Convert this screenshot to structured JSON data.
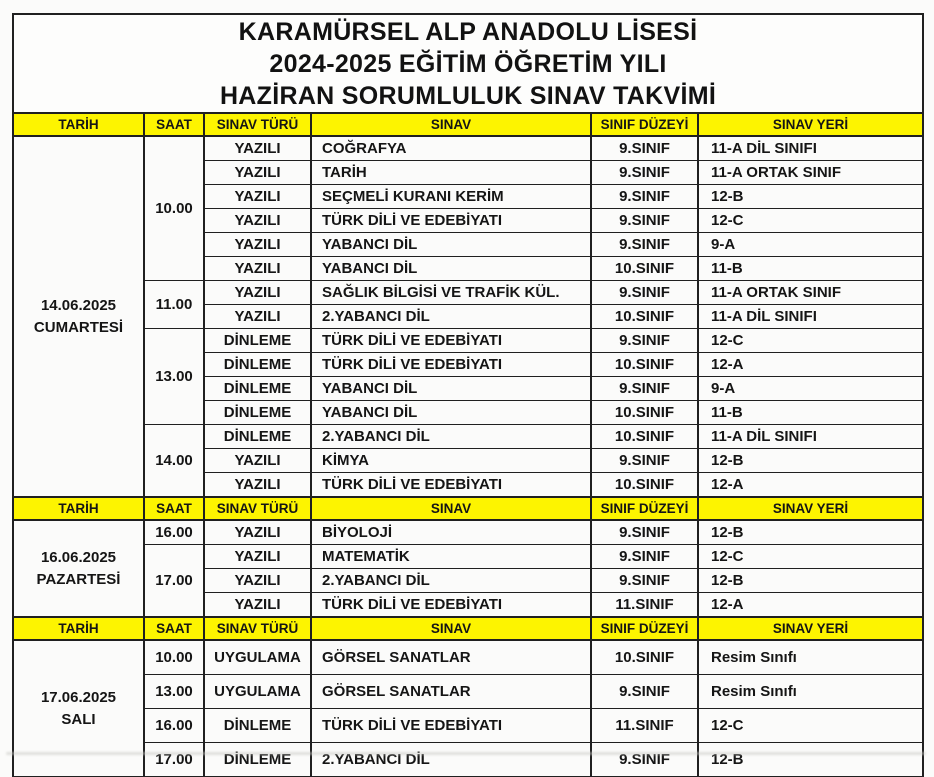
{
  "title": {
    "line1": "KARAMÜRSEL ALP ANADOLU LİSESİ",
    "line2": "2024-2025 EĞİTİM ÖĞRETİM YILI",
    "line3": "HAZİRAN SORUMLULUK SINAV TAKVİMİ"
  },
  "colors": {
    "header_bg": "#fdf400",
    "border": "#202020",
    "text": "#151515",
    "page_bg": "#fbfbfa"
  },
  "table": {
    "headers": [
      "TARİH",
      "SAAT",
      "SINAV TÜRÜ",
      "SINAV",
      "SINIF DÜZEYİ",
      "SINAV YERİ"
    ],
    "sections": [
      {
        "date_line1": "14.06.2025",
        "date_line2": "CUMARTESİ",
        "time_groups": [
          {
            "time": "10.00",
            "rows": [
              {
                "type": "YAZILI",
                "exam": "COĞRAFYA",
                "grade": "9.SINIF",
                "place": "11-A DİL SINIFI"
              },
              {
                "type": "YAZILI",
                "exam": "TARİH",
                "grade": "9.SINIF",
                "place": "11-A ORTAK SINIF"
              },
              {
                "type": "YAZILI",
                "exam": "SEÇMELİ KURANI KERİM",
                "grade": "9.SINIF",
                "place": "12-B"
              },
              {
                "type": "YAZILI",
                "exam": "TÜRK DİLİ VE EDEBİYATI",
                "grade": "9.SINIF",
                "place": "12-C"
              },
              {
                "type": "YAZILI",
                "exam": "YABANCI DİL",
                "grade": "9.SINIF",
                "place": "9-A"
              },
              {
                "type": "YAZILI",
                "exam": "YABANCI DİL",
                "grade": "10.SINIF",
                "place": "11-B"
              }
            ]
          },
          {
            "time": "11.00",
            "rows": [
              {
                "type": "YAZILI",
                "exam": "SAĞLIK BİLGİSİ VE TRAFİK KÜL.",
                "grade": "9.SINIF",
                "place": "11-A ORTAK SINIF"
              },
              {
                "type": "YAZILI",
                "exam": "2.YABANCI DİL",
                "grade": "10.SINIF",
                "place": "11-A DİL SINIFI"
              }
            ]
          },
          {
            "time": "13.00",
            "rows": [
              {
                "type": "DİNLEME",
                "exam": "TÜRK DİLİ VE EDEBİYATI",
                "grade": "9.SINIF",
                "place": "12-C"
              },
              {
                "type": "DİNLEME",
                "exam": "TÜRK DİLİ VE EDEBİYATI",
                "grade": "10.SINIF",
                "place": "12-A"
              },
              {
                "type": "DİNLEME",
                "exam": "YABANCI DİL",
                "grade": "9.SINIF",
                "place": "9-A"
              },
              {
                "type": "DİNLEME",
                "exam": "YABANCI DİL",
                "grade": "10.SINIF",
                "place": "11-B"
              }
            ]
          },
          {
            "time": "14.00",
            "rows": [
              {
                "type": "DİNLEME",
                "exam": "2.YABANCI DİL",
                "grade": "10.SINIF",
                "place": "11-A DİL SINIFI"
              },
              {
                "type": "YAZILI",
                "exam": "KİMYA",
                "grade": "9.SINIF",
                "place": "12-B"
              },
              {
                "type": "YAZILI",
                "exam": "TÜRK DİLİ VE EDEBİYATI",
                "grade": "10.SINIF",
                "place": "12-A"
              }
            ]
          }
        ]
      },
      {
        "date_line1": "16.06.2025",
        "date_line2": "PAZARTESİ",
        "time_groups": [
          {
            "time": "16.00",
            "rows": [
              {
                "type": "YAZILI",
                "exam": "BİYOLOJİ",
                "grade": "9.SINIF",
                "place": "12-B"
              }
            ]
          },
          {
            "time": "17.00",
            "rows": [
              {
                "type": "YAZILI",
                "exam": "MATEMATİK",
                "grade": "9.SINIF",
                "place": "12-C"
              },
              {
                "type": "YAZILI",
                "exam": "2.YABANCI DİL",
                "grade": "9.SINIF",
                "place": "12-B"
              },
              {
                "type": "YAZILI",
                "exam": "TÜRK DİLİ VE EDEBİYATI",
                "grade": "11.SINIF",
                "place": "12-A"
              }
            ]
          }
        ]
      },
      {
        "date_line1": "17.06.2025",
        "date_line2": "SALI",
        "time_groups": [
          {
            "time": "10.00",
            "rows": [
              {
                "type": "UYGULAMA",
                "exam": "GÖRSEL SANATLAR",
                "grade": "10.SINIF",
                "place": "Resim Sınıfı"
              }
            ]
          },
          {
            "time": "13.00",
            "rows": [
              {
                "type": "UYGULAMA",
                "exam": "GÖRSEL SANATLAR",
                "grade": "9.SINIF",
                "place": "Resim Sınıfı"
              }
            ]
          },
          {
            "time": "16.00",
            "rows": [
              {
                "type": "DİNLEME",
                "exam": "TÜRK DİLİ VE EDEBİYATI",
                "grade": "11.SINIF",
                "place": "12-C"
              }
            ]
          },
          {
            "time": "17.00",
            "rows": [
              {
                "type": "DİNLEME",
                "exam": "2.YABANCI DİL",
                "grade": "9.SINIF",
                "place": "12-B"
              }
            ]
          }
        ]
      }
    ]
  }
}
